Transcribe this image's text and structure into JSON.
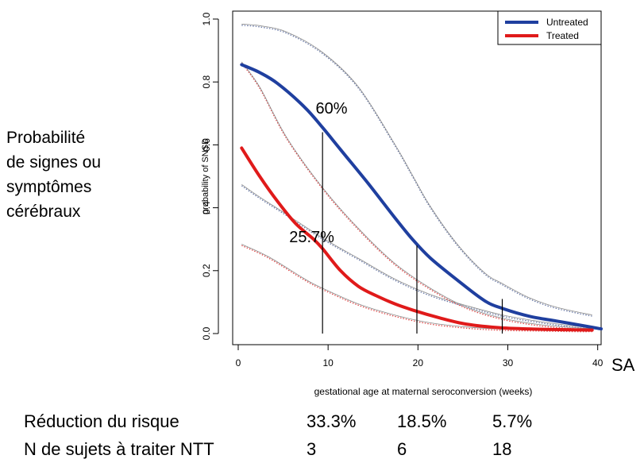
{
  "side_label": {
    "lines": [
      "Probabilité",
      "de signes ou",
      "symptômes",
      "cérébraux"
    ]
  },
  "unit_label": "SA",
  "chart_data": {
    "type": "line",
    "xlabel": "gestational age at maternal seroconversion (weeks)",
    "ylabel": "probability of SNSD",
    "xlim": [
      0,
      41
    ],
    "ylim": [
      0,
      1.0
    ],
    "x_ticks": [
      "0",
      "10",
      "20",
      "30",
      "40"
    ],
    "y_ticks": [
      "0.0",
      "0.2",
      "0.4",
      "0.6",
      "0.8",
      "1.0"
    ],
    "legend": {
      "placement": "top-right",
      "entries": [
        "Untreated",
        "Treated"
      ]
    },
    "colors": {
      "untreated": "#1f3f9f",
      "treated": "#e01a1a",
      "band_untreated": "#6a7aa8",
      "band_treated": "#e04a4a",
      "axis": "#000000"
    },
    "series": [
      {
        "name": "Untreated",
        "x": [
          1,
          3,
          5,
          8,
          10,
          12,
          15,
          18,
          20,
          22,
          25,
          28,
          30,
          33,
          36,
          38,
          40,
          41
        ],
        "y": [
          0.855,
          0.83,
          0.795,
          0.72,
          0.655,
          0.585,
          0.48,
          0.37,
          0.3,
          0.24,
          0.17,
          0.105,
          0.08,
          0.055,
          0.04,
          0.03,
          0.02,
          0.015
        ]
      },
      {
        "name": "Treated",
        "x": [
          1,
          3,
          5,
          7,
          9,
          10,
          12,
          14,
          16,
          18,
          20,
          23,
          26,
          30,
          34,
          38,
          40
        ],
        "y": [
          0.59,
          0.5,
          0.42,
          0.35,
          0.3,
          0.27,
          0.2,
          0.15,
          0.12,
          0.095,
          0.075,
          0.05,
          0.03,
          0.018,
          0.014,
          0.012,
          0.011
        ]
      }
    ],
    "confidence_bands": [
      {
        "of": "Untreated",
        "bound": "upper",
        "x": [
          1,
          3,
          6,
          10,
          14,
          18,
          20,
          22,
          25,
          28,
          30,
          33,
          36,
          40
        ],
        "y": [
          0.98,
          0.975,
          0.955,
          0.89,
          0.78,
          0.6,
          0.5,
          0.4,
          0.28,
          0.19,
          0.155,
          0.11,
          0.08,
          0.055
        ]
      },
      {
        "of": "Untreated",
        "bound": "lower",
        "x": [
          1,
          3,
          6,
          10,
          14,
          18,
          22,
          26,
          30,
          34,
          38,
          40
        ],
        "y": [
          0.47,
          0.43,
          0.375,
          0.3,
          0.235,
          0.17,
          0.12,
          0.085,
          0.055,
          0.035,
          0.02,
          0.015
        ]
      },
      {
        "of": "Treated",
        "bound": "upper",
        "x": [
          1,
          3,
          6,
          10,
          14,
          18,
          22,
          26,
          30,
          34,
          38,
          40
        ],
        "y": [
          0.86,
          0.78,
          0.62,
          0.46,
          0.33,
          0.22,
          0.14,
          0.08,
          0.045,
          0.025,
          0.015,
          0.012
        ]
      },
      {
        "of": "Treated",
        "bound": "lower",
        "x": [
          1,
          4,
          8,
          10,
          14,
          18,
          22,
          26,
          30,
          34,
          38,
          40
        ],
        "y": [
          0.28,
          0.24,
          0.17,
          0.14,
          0.09,
          0.055,
          0.03,
          0.017,
          0.01,
          0.008,
          0.006,
          0.006
        ]
      }
    ],
    "reference_lines": [
      {
        "x": 10,
        "y_top": 0.64
      },
      {
        "x": 20.5,
        "y_top": 0.28
      },
      {
        "x": 30,
        "y_top": 0.11
      }
    ],
    "annotations": [
      {
        "text": "60%",
        "x": 11,
        "y": 0.7
      },
      {
        "text": "25.7%",
        "x": 8.8,
        "y": 0.29
      }
    ]
  },
  "table": {
    "rows": [
      {
        "label": "Réduction du risque",
        "values": [
          "33.3%",
          "18.5%",
          "5.7%"
        ]
      },
      {
        "label": "N de sujets à traiter NTT",
        "values": [
          "3",
          "6",
          "18"
        ]
      }
    ]
  }
}
